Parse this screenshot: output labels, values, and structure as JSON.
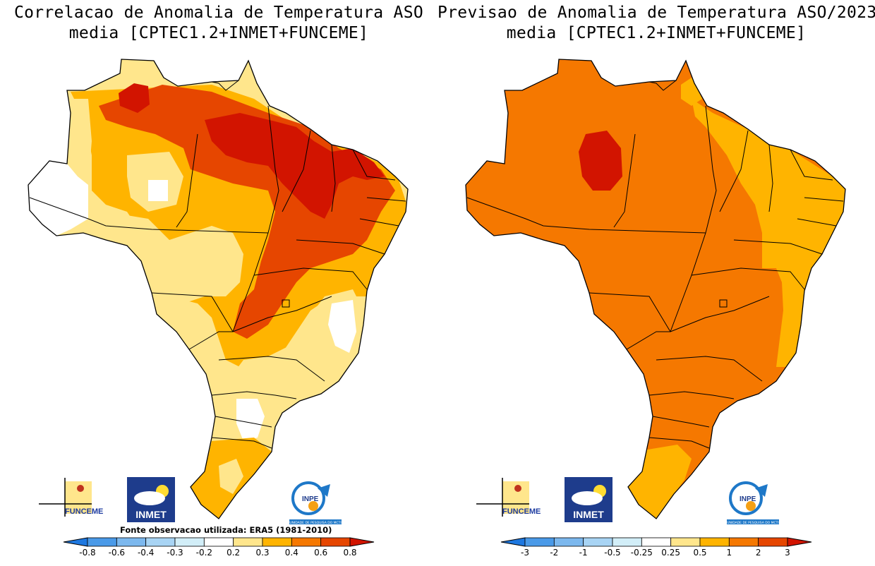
{
  "left_panel": {
    "title_line1": "Correlacao de Anomalia de Temperatura ASO",
    "title_line2": "media [CPTEC1.2+INMET+FUNCEME]",
    "source_note": "Fonte observacao utilizada: ERA5 (1981-2010)",
    "colorbar": {
      "labels": [
        "-0.8",
        "-0.6",
        "-0.4",
        "-0.3",
        "-0.2",
        "0.2",
        "0.3",
        "0.4",
        "0.6",
        "0.8"
      ],
      "colors": [
        "#1e78e0",
        "#4a9ae8",
        "#7cb8ee",
        "#a8d4f4",
        "#d2eef8",
        "#ffffff",
        "#ffe68c",
        "#ffb400",
        "#f57800",
        "#e64600",
        "#d21400"
      ]
    }
  },
  "right_panel": {
    "title_line1": "Previsao de Anomalia de Temperatura ASO/2023",
    "title_line2": "media [CPTEC1.2+INMET+FUNCEME]",
    "colorbar": {
      "labels": [
        "-3",
        "-2",
        "-1",
        "-0.5",
        "-0.25",
        "0.25",
        "0.5",
        "1",
        "2",
        "3"
      ],
      "colors": [
        "#1e78e0",
        "#4a9ae8",
        "#7cb8ee",
        "#a8d4f4",
        "#d2eef8",
        "#ffffff",
        "#ffe68c",
        "#ffb400",
        "#f57800",
        "#e64600",
        "#d21400"
      ]
    }
  },
  "logos": {
    "funceme": "FUNCEME",
    "inmet": "INMET",
    "inpe": "INPE",
    "inpe_sub": "UNIDADE DE PESQUISA DO MCTI"
  },
  "colors": {
    "white": "#ffffff",
    "light_yellow": "#ffe68c",
    "yellow_orange": "#ffb400",
    "orange": "#f57800",
    "red_orange": "#e64600",
    "red": "#d21400"
  }
}
